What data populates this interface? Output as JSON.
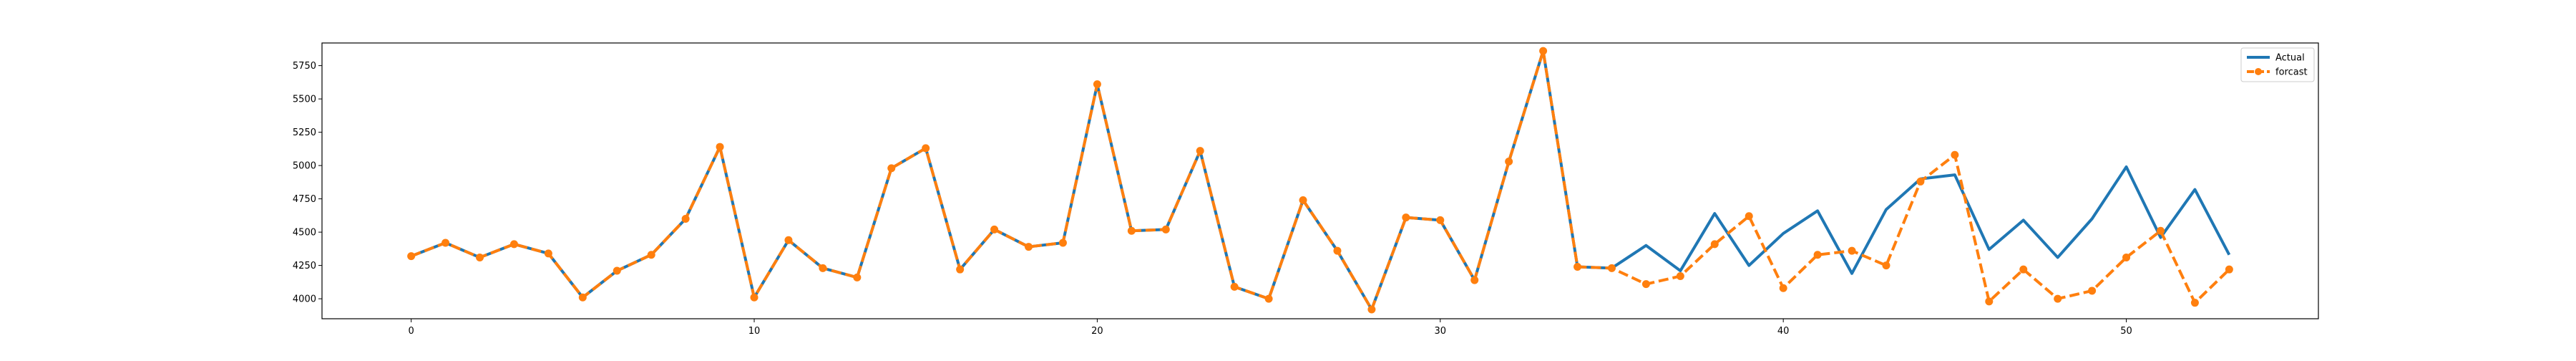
{
  "chart_data": {
    "type": "line",
    "title": "",
    "xlabel": "",
    "ylabel": "",
    "xlim": [
      -2.6,
      55.6
    ],
    "ylim": [
      3850,
      5920
    ],
    "grid": false,
    "legend_position": "top-right",
    "x_ticks": [
      0,
      10,
      20,
      30,
      40,
      50
    ],
    "y_ticks": [
      4000,
      4250,
      4500,
      4750,
      5000,
      5250,
      5500,
      5750
    ],
    "series": [
      {
        "name": "Actual",
        "color": "#1f77b4",
        "style": "solid",
        "marker": "none",
        "x": [
          0,
          1,
          2,
          3,
          4,
          5,
          6,
          7,
          8,
          9,
          10,
          11,
          12,
          13,
          14,
          15,
          16,
          17,
          18,
          19,
          20,
          21,
          22,
          23,
          24,
          25,
          26,
          27,
          28,
          29,
          30,
          31,
          32,
          33,
          34,
          35,
          36,
          37,
          38,
          39,
          40,
          41,
          42,
          43,
          44,
          45,
          46,
          47,
          48,
          49,
          50,
          51,
          52,
          53
        ],
        "values": [
          4320,
          4420,
          4310,
          4410,
          4340,
          4010,
          4210,
          4330,
          4600,
          5140,
          4010,
          4440,
          4230,
          4160,
          4980,
          5130,
          4220,
          4520,
          4390,
          4420,
          5610,
          4510,
          4520,
          5110,
          4090,
          4000,
          4740,
          4360,
          3920,
          4610,
          4590,
          4140,
          5030,
          5860,
          4240,
          4230,
          4400,
          4210,
          4640,
          4250,
          4490,
          4660,
          4190,
          4670,
          4900,
          4930,
          4370,
          4590,
          4310,
          4600,
          4990,
          4460,
          4820,
          4330
        ]
      },
      {
        "name": "forcast",
        "color": "#ff7f0e",
        "style": "dashed",
        "marker": "circle",
        "x": [
          0,
          1,
          2,
          3,
          4,
          5,
          6,
          7,
          8,
          9,
          10,
          11,
          12,
          13,
          14,
          15,
          16,
          17,
          18,
          19,
          20,
          21,
          22,
          23,
          24,
          25,
          26,
          27,
          28,
          29,
          30,
          31,
          32,
          33,
          34,
          35,
          36,
          37,
          38,
          39,
          40,
          41,
          42,
          43,
          44,
          45,
          46,
          47,
          48,
          49,
          50,
          51,
          52,
          53
        ],
        "values": [
          4320,
          4420,
          4310,
          4410,
          4340,
          4010,
          4210,
          4330,
          4600,
          5140,
          4010,
          4440,
          4230,
          4160,
          4980,
          5130,
          4220,
          4520,
          4390,
          4420,
          5610,
          4510,
          4520,
          5110,
          4090,
          4000,
          4740,
          4360,
          3920,
          4610,
          4590,
          4140,
          5030,
          5860,
          4240,
          4230,
          4110,
          4170,
          4410,
          4620,
          4080,
          4330,
          4360,
          4250,
          4880,
          5080,
          3980,
          4220,
          4000,
          4060,
          4310,
          4510,
          3970,
          4220
        ]
      }
    ]
  }
}
